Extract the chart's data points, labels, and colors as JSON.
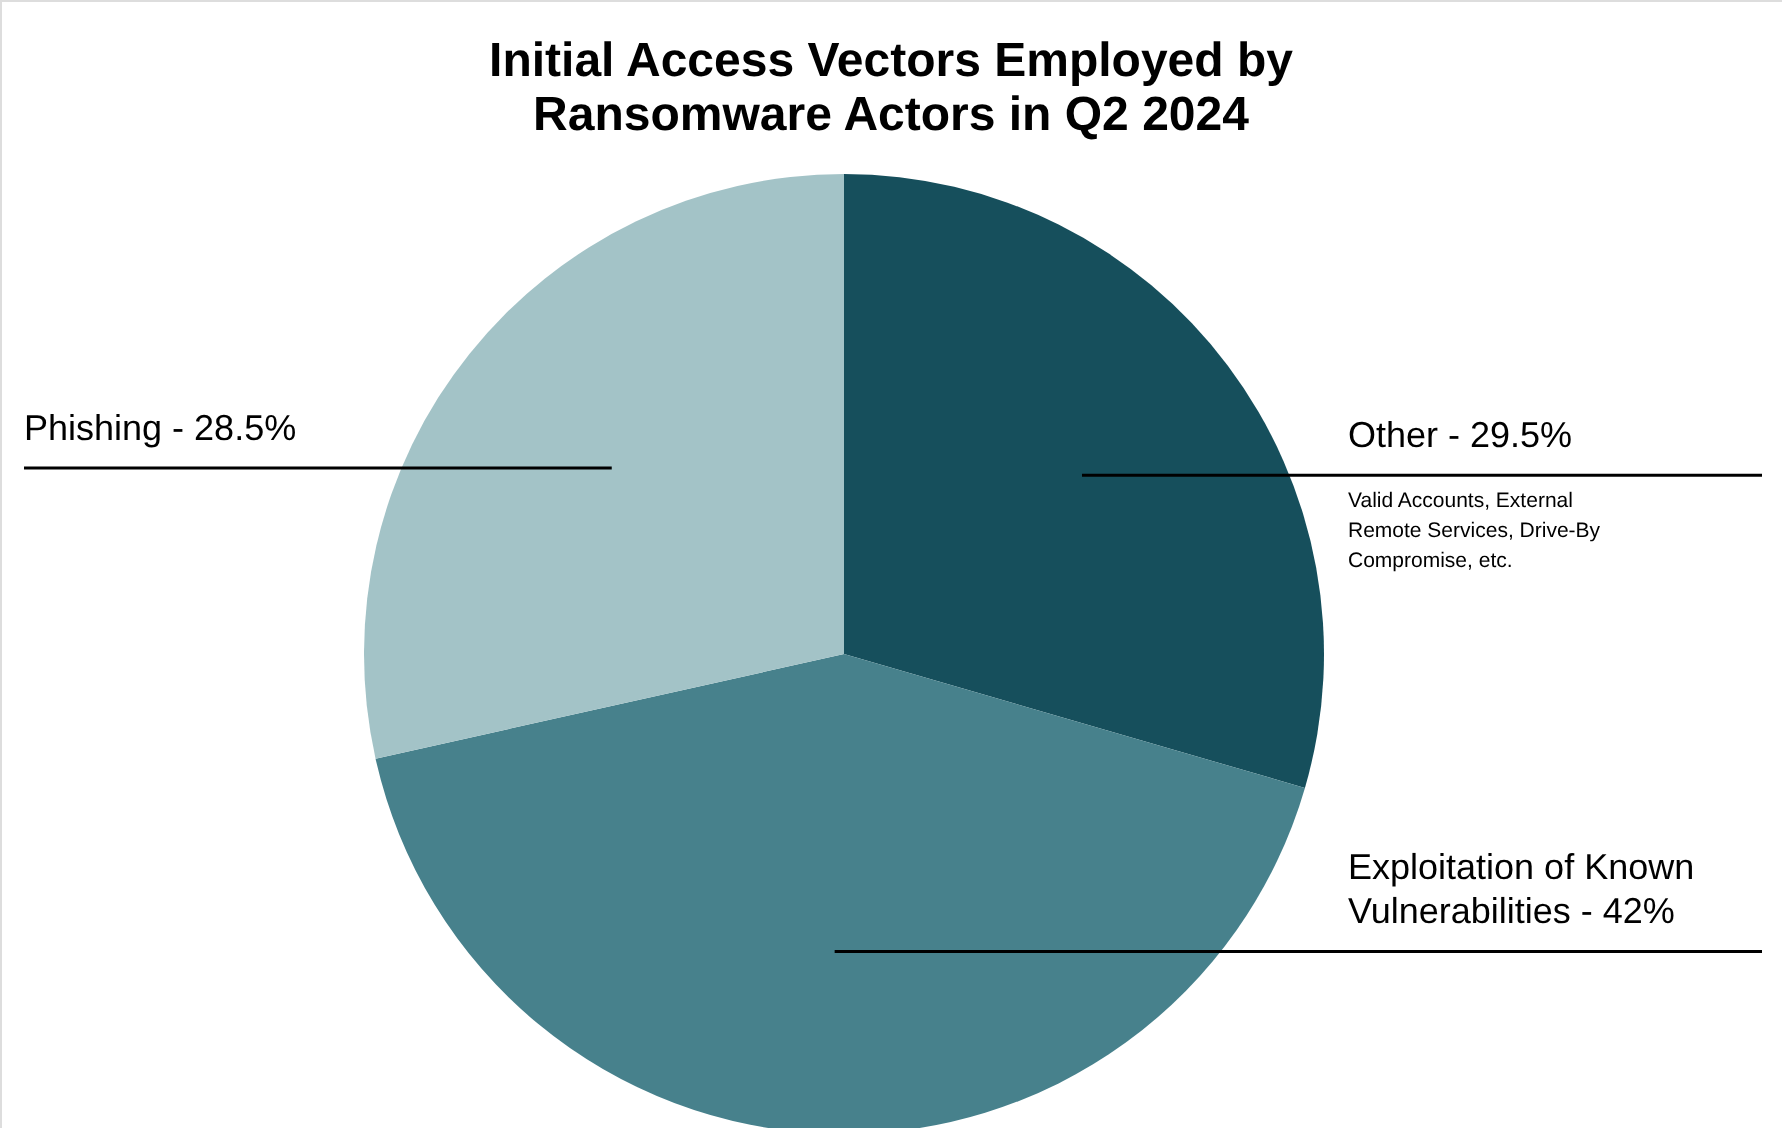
{
  "chart_data": {
    "type": "pie",
    "title": "Initial Access Vectors Employed by\nRansomware Actors in Q2 2024",
    "categories": [
      "Other - 29.5%",
      "Exploitation of Known\nVulnerabilities - 42%",
      "Phishing - 28.5%"
    ],
    "values": [
      29.5,
      42,
      28.5
    ],
    "colors": [
      "#164f5c",
      "#47818c",
      "#a3c3c7"
    ],
    "annotations": [
      "Valid Accounts, External Remote Services, Drive-By Compromise, etc."
    ],
    "legend": false
  }
}
